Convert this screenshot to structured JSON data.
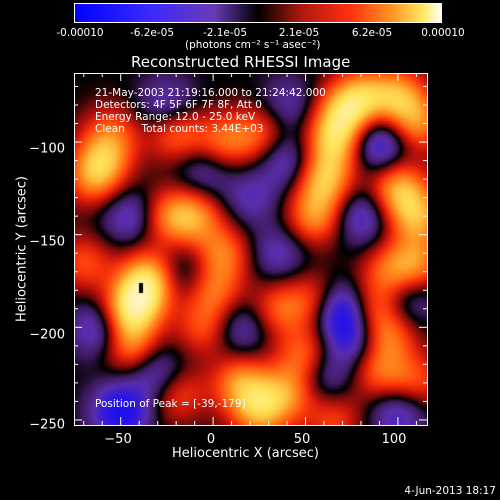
{
  "colorbar": {
    "tick_labels": [
      "-0.00010",
      "-6.2e-05",
      "-2.1e-05",
      "2.1e-05",
      "6.2e-05",
      "0.00010"
    ],
    "unit_label": "(photons cm⁻² s⁻¹ asec⁻²)"
  },
  "plot": {
    "title": "Reconstructed RHESSI Image",
    "info_lines": [
      "21-May-2003 21:19:16.000 to 21:24:42.000",
      "Detectors: 4F 5F 6F 7F 8F, Att 0",
      "Energy Range: 12.0 - 25.0 keV",
      "Clean     Total counts: 3.44E+03"
    ],
    "peak_label": "Position of Peak = [-39,-179]",
    "timestamp": "4-Jun-2013 18:17"
  },
  "chart_data": {
    "type": "heatmap",
    "title": "Reconstructed RHESSI Image",
    "xlabel": "Heliocentric X (arcsec)",
    "ylabel": "Heliocentric Y (arcsec)",
    "xlim": [
      -75,
      116
    ],
    "ylim": [
      -253,
      -63
    ],
    "x_ticks": [
      -50,
      0,
      50,
      100
    ],
    "y_ticks": [
      -100,
      -150,
      -200,
      -250
    ],
    "colorbar_range": [
      -0.0001,
      0.0001
    ],
    "colormap": "blue-purple-black-red-orange-yellow-white",
    "peak_position": [
      -39,
      -179
    ],
    "blobs": [
      {
        "x": -40,
        "y": -185,
        "v": 1.0
      },
      {
        "x": -35,
        "y": -172,
        "v": 0.85
      },
      {
        "x": -50,
        "y": -195,
        "v": 0.8
      },
      {
        "x": -45,
        "y": -210,
        "v": 0.7
      },
      {
        "x": 60,
        "y": -120,
        "v": 0.95
      },
      {
        "x": 65,
        "y": -100,
        "v": 0.9
      },
      {
        "x": 70,
        "y": -85,
        "v": 0.85
      },
      {
        "x": 55,
        "y": -140,
        "v": 0.8
      },
      {
        "x": 80,
        "y": -75,
        "v": 0.8
      },
      {
        "x": 100,
        "y": -75,
        "v": 0.85
      },
      {
        "x": 110,
        "y": -90,
        "v": 0.75
      },
      {
        "x": 100,
        "y": -125,
        "v": 0.9
      },
      {
        "x": 110,
        "y": -140,
        "v": 0.85
      },
      {
        "x": 110,
        "y": -165,
        "v": 0.7
      },
      {
        "x": 95,
        "y": -170,
        "v": 0.6
      },
      {
        "x": -60,
        "y": -110,
        "v": 0.7
      },
      {
        "x": -65,
        "y": -120,
        "v": 0.6
      },
      {
        "x": -55,
        "y": -95,
        "v": 0.55
      },
      {
        "x": -20,
        "y": -95,
        "v": 0.7
      },
      {
        "x": 5,
        "y": -100,
        "v": 0.65
      },
      {
        "x": 25,
        "y": -95,
        "v": 0.6
      },
      {
        "x": -25,
        "y": -140,
        "v": 0.65
      },
      {
        "x": -10,
        "y": -140,
        "v": 0.75
      },
      {
        "x": 5,
        "y": -160,
        "v": 0.7
      },
      {
        "x": 0,
        "y": -180,
        "v": 0.65
      },
      {
        "x": -5,
        "y": -200,
        "v": 0.55
      },
      {
        "x": 35,
        "y": -190,
        "v": 0.6
      },
      {
        "x": 55,
        "y": -185,
        "v": 0.55
      },
      {
        "x": 85,
        "y": -190,
        "v": 0.7
      },
      {
        "x": 95,
        "y": -205,
        "v": 0.65
      },
      {
        "x": 90,
        "y": -225,
        "v": 0.6
      },
      {
        "x": 50,
        "y": -215,
        "v": 0.7
      },
      {
        "x": 15,
        "y": -230,
        "v": 0.8
      },
      {
        "x": 25,
        "y": -245,
        "v": 0.85
      },
      {
        "x": 40,
        "y": -235,
        "v": 0.7
      },
      {
        "x": -20,
        "y": -235,
        "v": 0.6
      },
      {
        "x": 65,
        "y": -250,
        "v": 0.5
      },
      {
        "x": 110,
        "y": -230,
        "v": 0.55
      },
      {
        "x": -70,
        "y": -165,
        "v": 0.55
      },
      {
        "x": 20,
        "y": -130,
        "v": -0.4
      },
      {
        "x": -45,
        "y": -140,
        "v": -0.55
      },
      {
        "x": -5,
        "y": -115,
        "v": -0.45
      },
      {
        "x": 70,
        "y": -190,
        "v": -0.95
      },
      {
        "x": 75,
        "y": -205,
        "v": -0.6
      },
      {
        "x": 90,
        "y": -100,
        "v": -0.8
      },
      {
        "x": 40,
        "y": -110,
        "v": -0.55
      },
      {
        "x": 80,
        "y": -140,
        "v": -0.6
      },
      {
        "x": -60,
        "y": -200,
        "v": -0.85
      },
      {
        "x": -50,
        "y": -245,
        "v": -0.9
      },
      {
        "x": -30,
        "y": -225,
        "v": -0.6
      },
      {
        "x": 15,
        "y": -200,
        "v": -0.5
      },
      {
        "x": 35,
        "y": -160,
        "v": -0.45
      },
      {
        "x": -25,
        "y": -80,
        "v": -0.5
      },
      {
        "x": 40,
        "y": -80,
        "v": -0.4
      },
      {
        "x": 100,
        "y": -245,
        "v": -0.6
      },
      {
        "x": 60,
        "y": -225,
        "v": -0.5
      },
      {
        "x": -15,
        "y": -170,
        "v": -0.4
      },
      {
        "x": 105,
        "y": -185,
        "v": -0.45
      }
    ]
  }
}
